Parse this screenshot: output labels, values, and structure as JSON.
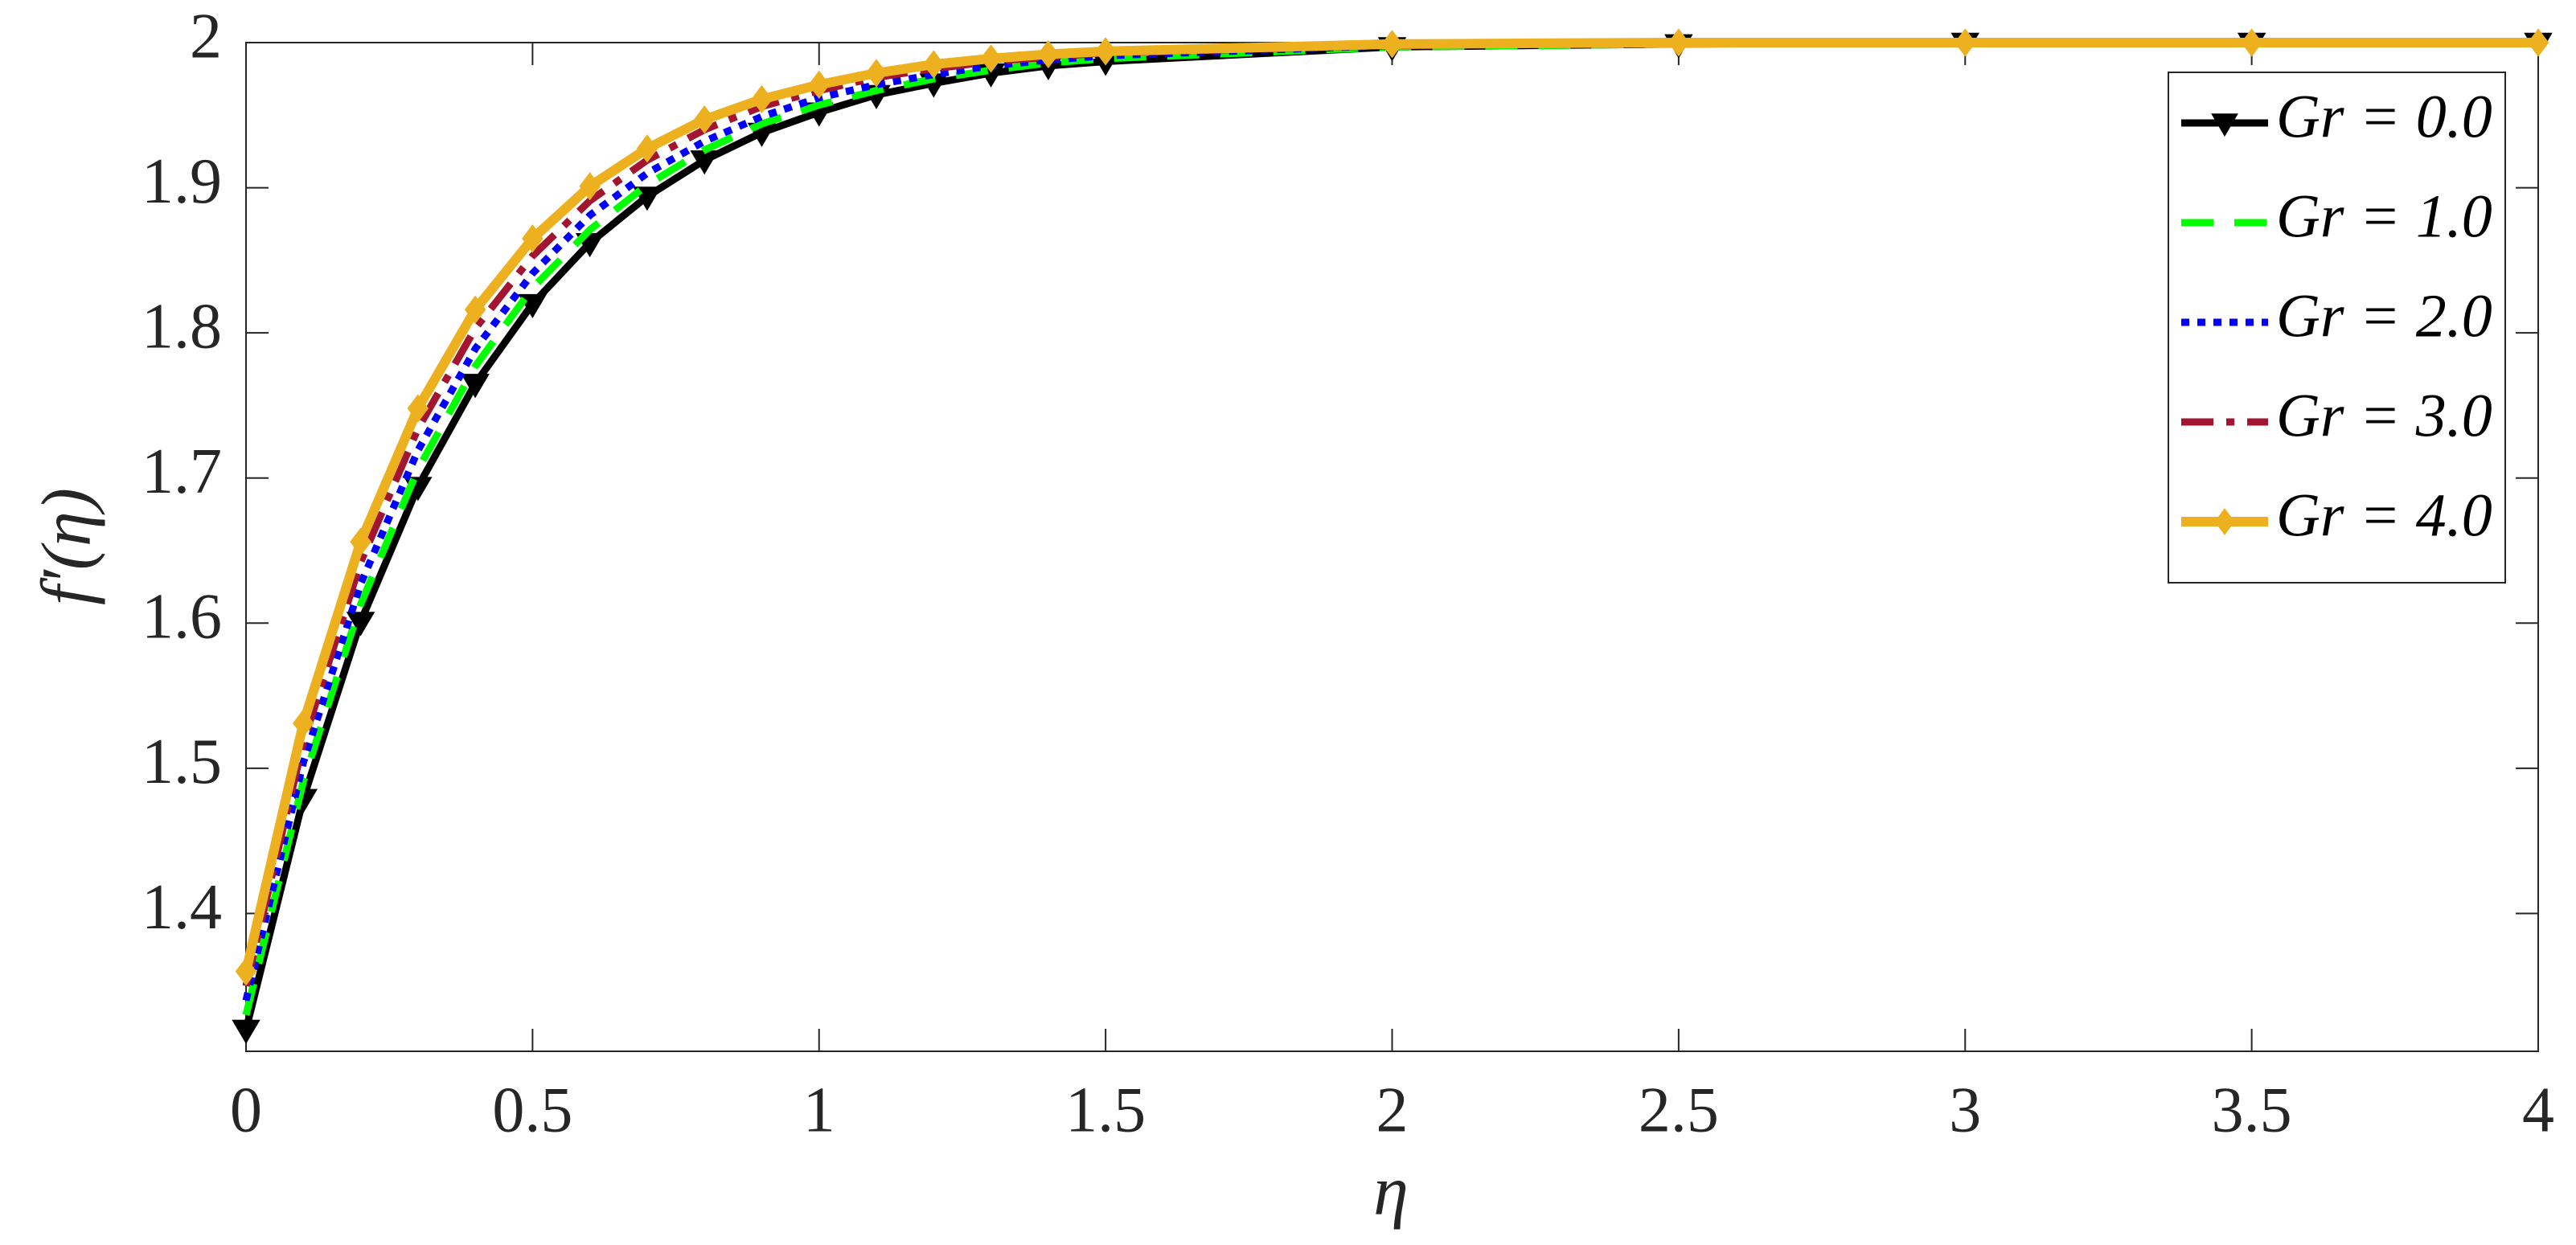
{
  "chart_data": {
    "type": "line",
    "xlabel": "η",
    "ylabel": "f′(η)",
    "x": [
      0,
      0.1,
      0.2,
      0.3,
      0.4,
      0.5,
      0.6,
      0.7,
      0.8,
      0.9,
      1.0,
      1.1,
      1.2,
      1.3,
      1.4,
      1.5,
      2,
      2.5,
      3,
      3.5,
      4
    ],
    "series": [
      {
        "name": "Gr = 0.0",
        "color": "#000000",
        "linestyle": "solid",
        "marker": "triangle-down",
        "values": [
          1.32,
          1.479,
          1.601,
          1.694,
          1.765,
          1.82,
          1.862,
          1.894,
          1.919,
          1.938,
          1.952,
          1.964,
          1.972,
          1.979,
          1.984,
          1.987,
          1.997,
          1.999,
          2.0,
          2.0,
          2.0
        ]
      },
      {
        "name": "Gr = 1.0",
        "color": "#00ff00",
        "linestyle": "dashed",
        "marker": "none",
        "values": [
          1.33,
          1.491,
          1.613,
          1.706,
          1.777,
          1.831,
          1.871,
          1.902,
          1.926,
          1.944,
          1.957,
          1.967,
          1.975,
          1.981,
          1.986,
          1.989,
          1.997,
          1.999,
          2.0,
          2.0,
          2.0
        ]
      },
      {
        "name": "Gr = 2.0",
        "color": "#0000ff",
        "linestyle": "dotted",
        "marker": "none",
        "values": [
          1.34,
          1.504,
          1.627,
          1.719,
          1.789,
          1.841,
          1.881,
          1.91,
          1.932,
          1.949,
          1.962,
          1.971,
          1.978,
          1.984,
          1.988,
          1.991,
          1.998,
          2.0,
          2.0,
          2.0,
          2.0
        ]
      },
      {
        "name": "Gr = 3.0",
        "color": "#a2142f",
        "linestyle": "dashdot",
        "marker": "none",
        "values": [
          1.35,
          1.518,
          1.642,
          1.734,
          1.803,
          1.853,
          1.891,
          1.919,
          1.94,
          1.956,
          1.967,
          1.976,
          1.982,
          1.987,
          1.99,
          1.993,
          1.998,
          2.0,
          2.0,
          2.0,
          2.0
        ]
      },
      {
        "name": "Gr = 4.0",
        "color": "#edb120",
        "linestyle": "solid-thick",
        "marker": "diamond",
        "values": [
          1.36,
          1.531,
          1.656,
          1.748,
          1.816,
          1.865,
          1.901,
          1.927,
          1.947,
          1.961,
          1.971,
          1.979,
          1.985,
          1.989,
          1.992,
          1.994,
          1.999,
          2.0,
          2.0,
          2.0,
          2.0
        ]
      }
    ],
    "xlim": [
      0,
      4
    ],
    "xticks": [
      0,
      0.5,
      1,
      1.5,
      2,
      2.5,
      3,
      3.5,
      4
    ],
    "ylim": [
      1.305,
      2.0
    ],
    "yticks": [
      1.4,
      1.5,
      1.6,
      1.7,
      1.8,
      1.9,
      2
    ],
    "grid": false,
    "legend": "upper right"
  }
}
